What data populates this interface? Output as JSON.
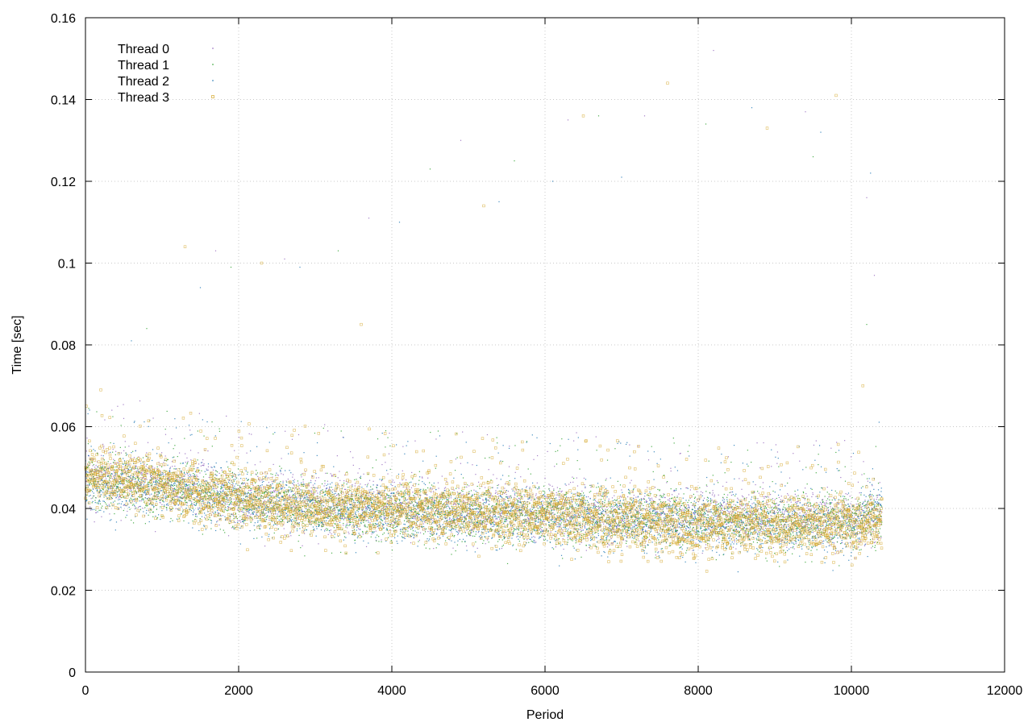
{
  "chart_data": {
    "type": "scatter",
    "title": "",
    "xlabel": "Period",
    "ylabel": "Time [sec]",
    "xlim": [
      0,
      12000
    ],
    "ylim": [
      0,
      0.16
    ],
    "x_ticks": [
      "0",
      "2000",
      "4000",
      "6000",
      "8000",
      "10000",
      "12000"
    ],
    "y_ticks": [
      "0",
      "0.02",
      "0.04",
      "0.06",
      "0.08",
      "0.1",
      "0.12",
      "0.14",
      "0.16"
    ],
    "grid": true,
    "legend_position": "top-left",
    "series": [
      {
        "name": "Thread 0",
        "color": "#9467bd",
        "marker": "dot",
        "trend": [
          [
            0,
            0.048
          ],
          [
            1000,
            0.046
          ],
          [
            2000,
            0.043
          ],
          [
            3000,
            0.041
          ],
          [
            4000,
            0.04
          ],
          [
            5000,
            0.039
          ],
          [
            6000,
            0.039
          ],
          [
            7000,
            0.038
          ],
          [
            8000,
            0.038
          ],
          [
            9000,
            0.038
          ],
          [
            10000,
            0.037
          ],
          [
            10400,
            0.038
          ]
        ],
        "points": [
          [
            500,
            0.062
          ],
          [
            1700,
            0.103
          ],
          [
            2600,
            0.101
          ],
          [
            3700,
            0.111
          ],
          [
            4900,
            0.13
          ],
          [
            6300,
            0.135
          ],
          [
            7300,
            0.136
          ],
          [
            8200,
            0.152
          ],
          [
            9400,
            0.137
          ],
          [
            10200,
            0.116
          ],
          [
            10300,
            0.097
          ]
        ]
      },
      {
        "name": "Thread 1",
        "color": "#2ca02c",
        "marker": "dot",
        "trend": [
          [
            0,
            0.047
          ],
          [
            1000,
            0.045
          ],
          [
            2000,
            0.042
          ],
          [
            3000,
            0.04
          ],
          [
            4000,
            0.039
          ],
          [
            5000,
            0.039
          ],
          [
            6000,
            0.038
          ],
          [
            7000,
            0.038
          ],
          [
            8000,
            0.037
          ],
          [
            9000,
            0.037
          ],
          [
            10000,
            0.037
          ],
          [
            10400,
            0.038
          ]
        ],
        "points": [
          [
            800,
            0.084
          ],
          [
            1900,
            0.099
          ],
          [
            3300,
            0.103
          ],
          [
            4500,
            0.123
          ],
          [
            5600,
            0.125
          ],
          [
            6700,
            0.136
          ],
          [
            8100,
            0.134
          ],
          [
            9500,
            0.126
          ],
          [
            10200,
            0.085
          ]
        ]
      },
      {
        "name": "Thread 2",
        "color": "#1f77b4",
        "marker": "dot",
        "trend": [
          [
            0,
            0.046
          ],
          [
            1000,
            0.045
          ],
          [
            2000,
            0.042
          ],
          [
            3000,
            0.04
          ],
          [
            4000,
            0.039
          ],
          [
            5000,
            0.038
          ],
          [
            6000,
            0.038
          ],
          [
            7000,
            0.037
          ],
          [
            8000,
            0.036
          ],
          [
            9000,
            0.036
          ],
          [
            10000,
            0.036
          ],
          [
            10400,
            0.042
          ]
        ],
        "points": [
          [
            600,
            0.081
          ],
          [
            1500,
            0.094
          ],
          [
            2800,
            0.099
          ],
          [
            4100,
            0.11
          ],
          [
            5400,
            0.115
          ],
          [
            6100,
            0.12
          ],
          [
            7000,
            0.121
          ],
          [
            8700,
            0.138
          ],
          [
            9600,
            0.132
          ],
          [
            10250,
            0.122
          ]
        ]
      },
      {
        "name": "Thread 3",
        "color": "#d4a72c",
        "marker": "square",
        "trend": [
          [
            0,
            0.048
          ],
          [
            1000,
            0.046
          ],
          [
            2000,
            0.042
          ],
          [
            3000,
            0.04
          ],
          [
            4000,
            0.04
          ],
          [
            5000,
            0.039
          ],
          [
            6000,
            0.038
          ],
          [
            7000,
            0.037
          ],
          [
            8000,
            0.036
          ],
          [
            9000,
            0.036
          ],
          [
            10000,
            0.036
          ],
          [
            10400,
            0.037
          ]
        ],
        "points": [
          [
            200,
            0.069
          ],
          [
            1300,
            0.104
          ],
          [
            2300,
            0.1
          ],
          [
            3600,
            0.085
          ],
          [
            5200,
            0.114
          ],
          [
            6500,
            0.136
          ],
          [
            7600,
            0.144
          ],
          [
            8900,
            0.133
          ],
          [
            9800,
            0.141
          ],
          [
            10150,
            0.07
          ]
        ]
      }
    ]
  }
}
